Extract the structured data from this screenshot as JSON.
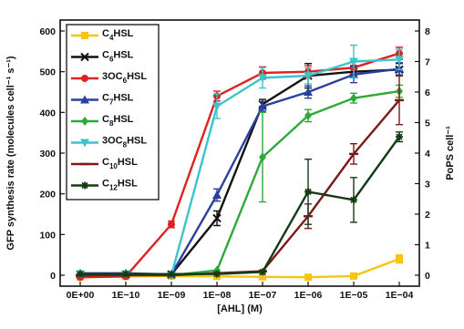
{
  "chart_data": {
    "type": "line",
    "xlabel": "[AHL] (M)",
    "ylabel": "GFP synthesis rate (molecules cell⁻¹ s⁻¹)",
    "ylabel_right": "PoPS cell⁻¹",
    "x_categories": [
      "0E+00",
      "1E−10",
      "1E−09",
      "1E−08",
      "1E−07",
      "1E−06",
      "1E−05",
      "1E−04"
    ],
    "ylim": [
      0,
      600
    ],
    "yticks": [
      0,
      100,
      200,
      300,
      400,
      500,
      600
    ],
    "y2lim": [
      0,
      8
    ],
    "y2ticks": [
      0,
      1,
      2,
      3,
      4,
      5,
      6,
      7,
      8
    ],
    "grid": false,
    "legend_position": "top-left",
    "series": [
      {
        "name": "C4HSL",
        "color": "#f5c60f",
        "marker": "square",
        "values": [
          -5,
          -3,
          -2,
          -3,
          -4,
          -5,
          -2,
          40
        ],
        "errors": [
          0,
          0,
          0,
          0,
          0,
          0,
          0,
          10
        ]
      },
      {
        "name": "C6HSL",
        "color": "#111111",
        "marker": "x",
        "values": [
          2,
          2,
          2,
          140,
          420,
          490,
          500,
          505
        ],
        "errors": [
          0,
          0,
          0,
          18,
          12,
          30,
          15,
          15
        ]
      },
      {
        "name": "3OC6HSL",
        "color": "#dd2222",
        "marker": "circle",
        "values": [
          -5,
          -3,
          125,
          440,
          497,
          500,
          510,
          545
        ],
        "errors": [
          0,
          0,
          8,
          12,
          15,
          15,
          15,
          15
        ]
      },
      {
        "name": "C7HSL",
        "color": "#2b3f9e",
        "marker": "triangle-up",
        "values": [
          5,
          5,
          2,
          197,
          415,
          450,
          493,
          507
        ],
        "errors": [
          0,
          0,
          0,
          15,
          12,
          15,
          20,
          15
        ]
      },
      {
        "name": "C8HSL",
        "color": "#2ea83a",
        "marker": "diamond",
        "values": [
          3,
          3,
          0,
          12,
          290,
          392,
          435,
          452
        ],
        "errors": [
          0,
          0,
          0,
          0,
          110,
          15,
          12,
          15
        ]
      },
      {
        "name": "3OC8HSL",
        "color": "#3cc4cc",
        "marker": "triangle-down",
        "values": [
          3,
          3,
          0,
          415,
          485,
          490,
          525,
          530
        ],
        "errors": [
          0,
          0,
          0,
          30,
          25,
          20,
          40,
          25
        ]
      },
      {
        "name": "C10HSL",
        "color": "#7a1a1a",
        "marker": "dash",
        "values": [
          0,
          0,
          0,
          5,
          10,
          145,
          298,
          430
        ],
        "errors": [
          0,
          0,
          0,
          0,
          0,
          30,
          25,
          60
        ]
      },
      {
        "name": "C12HSL",
        "color": "#143c14",
        "marker": "star",
        "values": [
          3,
          3,
          3,
          3,
          8,
          205,
          185,
          340
        ],
        "errors": [
          0,
          0,
          0,
          0,
          0,
          80,
          55,
          12
        ]
      }
    ]
  }
}
